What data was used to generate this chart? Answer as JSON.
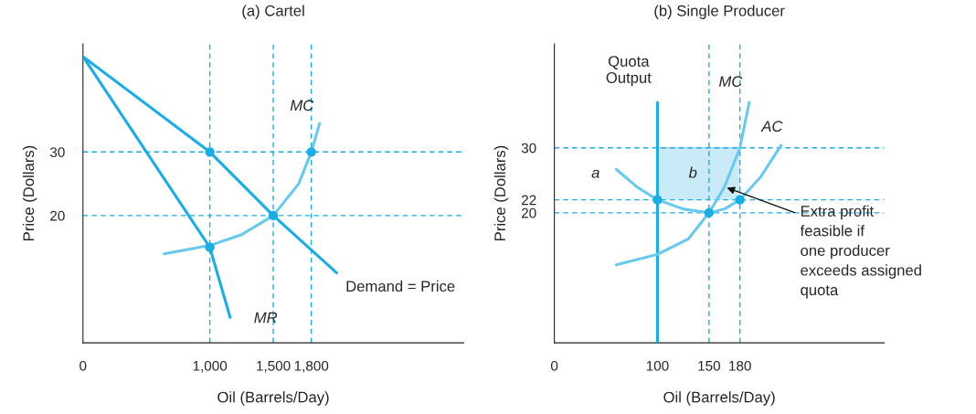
{
  "chart_data": [
    {
      "type": "line",
      "title": "(a) Cartel",
      "xlabel": "Oil (Barrels/Day)",
      "ylabel": "Price (Dollars)",
      "xlim": [
        0,
        3000
      ],
      "ylim": [
        0,
        47
      ],
      "xticks": [
        0,
        {
          "value": 1000,
          "label": "1,000"
        },
        {
          "value": 1500,
          "label": "1,500"
        },
        {
          "value": 1800,
          "label": "1,800"
        }
      ],
      "yticks": [
        20,
        30
      ],
      "grid": false,
      "legend": false,
      "series": [
        {
          "color": "#19ade6",
          "x": [
            0,
            1000,
            1500,
            2000
          ],
          "values": [
            45,
            30,
            20,
            11
          ]
        },
        {
          "color": "#19ade6",
          "x": [
            0,
            1000,
            1160
          ],
          "values": [
            45,
            15,
            4
          ]
        },
        {
          "color": "#66c9ef",
          "x": [
            640,
            1000,
            1250,
            1500,
            1700,
            1800,
            1865
          ],
          "values": [
            14,
            15.3,
            17,
            20,
            25,
            30,
            34.5
          ]
        },
        {
          "type": "scatter",
          "color": "#19ade6",
          "marker": "circle",
          "x": [
            1000,
            1500,
            1800,
            1000
          ],
          "values": [
            30,
            20,
            30,
            15
          ]
        }
      ],
      "ref_lines": [
        {
          "axis": "y",
          "value": 30,
          "color": "#19ade6",
          "line_style": "dashed"
        },
        {
          "axis": "y",
          "value": 20,
          "color": "#19ade6",
          "line_style": "dashed"
        },
        {
          "axis": "x",
          "value": 1000,
          "color": "#19ade6",
          "line_style": "dashed"
        },
        {
          "axis": "x",
          "value": 1500,
          "color": "#19ade6",
          "line_style": "dashed"
        },
        {
          "axis": "x",
          "value": 1800,
          "color": "#19ade6",
          "line_style": "dashed"
        }
      ],
      "annotations": [
        "MC",
        "MR",
        "Demand = Price"
      ]
    },
    {
      "type": "line",
      "title": "(b) Single Producer",
      "xlabel": "Oil (Barrels/Day)",
      "ylabel": "Price (Dollars)",
      "xlim": [
        0,
        320
      ],
      "ylim": [
        0,
        46
      ],
      "xticks": [
        0,
        100,
        150,
        180
      ],
      "yticks": [
        20,
        22,
        30
      ],
      "grid": false,
      "legend": false,
      "series": [
        {
          "type": "line",
          "color": "#9fd8f2",
          "x": [
            100,
            180
          ],
          "values": [
            30,
            30
          ],
          "lower": [
            22,
            22
          ],
          "upper": [
            30,
            30
          ]
        },
        {
          "color": "#19ade6",
          "x": [
            100,
            100
          ],
          "values": [
            0,
            37
          ]
        },
        {
          "color": "#66c9ef",
          "x": [
            60,
            100,
            130,
            150,
            165,
            180,
            189
          ],
          "values": [
            12,
            13.6,
            16,
            20,
            24,
            30,
            37
          ]
        },
        {
          "color": "#66c9ef",
          "x": [
            60,
            80,
            100,
            125,
            150,
            165,
            180,
            200,
            220
          ],
          "values": [
            26.7,
            24,
            22,
            20.6,
            20,
            20.6,
            22,
            25.5,
            30.4
          ]
        },
        {
          "type": "scatter",
          "color": "#19ade6",
          "marker": "circle",
          "x": [
            100,
            150,
            180
          ],
          "values": [
            22,
            20,
            22
          ]
        }
      ],
      "ref_lines": [
        {
          "axis": "y",
          "value": 30,
          "color": "#19ade6",
          "line_style": "dashed"
        },
        {
          "axis": "y",
          "value": 22,
          "color": "#19ade6",
          "line_style": "dashed"
        },
        {
          "axis": "y",
          "value": 20,
          "color": "#19ade6",
          "line_style": "dashed"
        },
        {
          "axis": "x",
          "value": 150,
          "color": "#19ade6",
          "line_style": "dashed"
        },
        {
          "axis": "x",
          "value": 180,
          "color": "#19ade6",
          "line_style": "dashed"
        }
      ],
      "annotations": [
        "Quota\nOutput",
        "MC",
        "AC",
        "a",
        "b",
        {
          "text": "Extra profit\nfeasible if\none producer\nexceeds assigned\nquota",
          "x": 165,
          "y": 24
        }
      ]
    }
  ]
}
